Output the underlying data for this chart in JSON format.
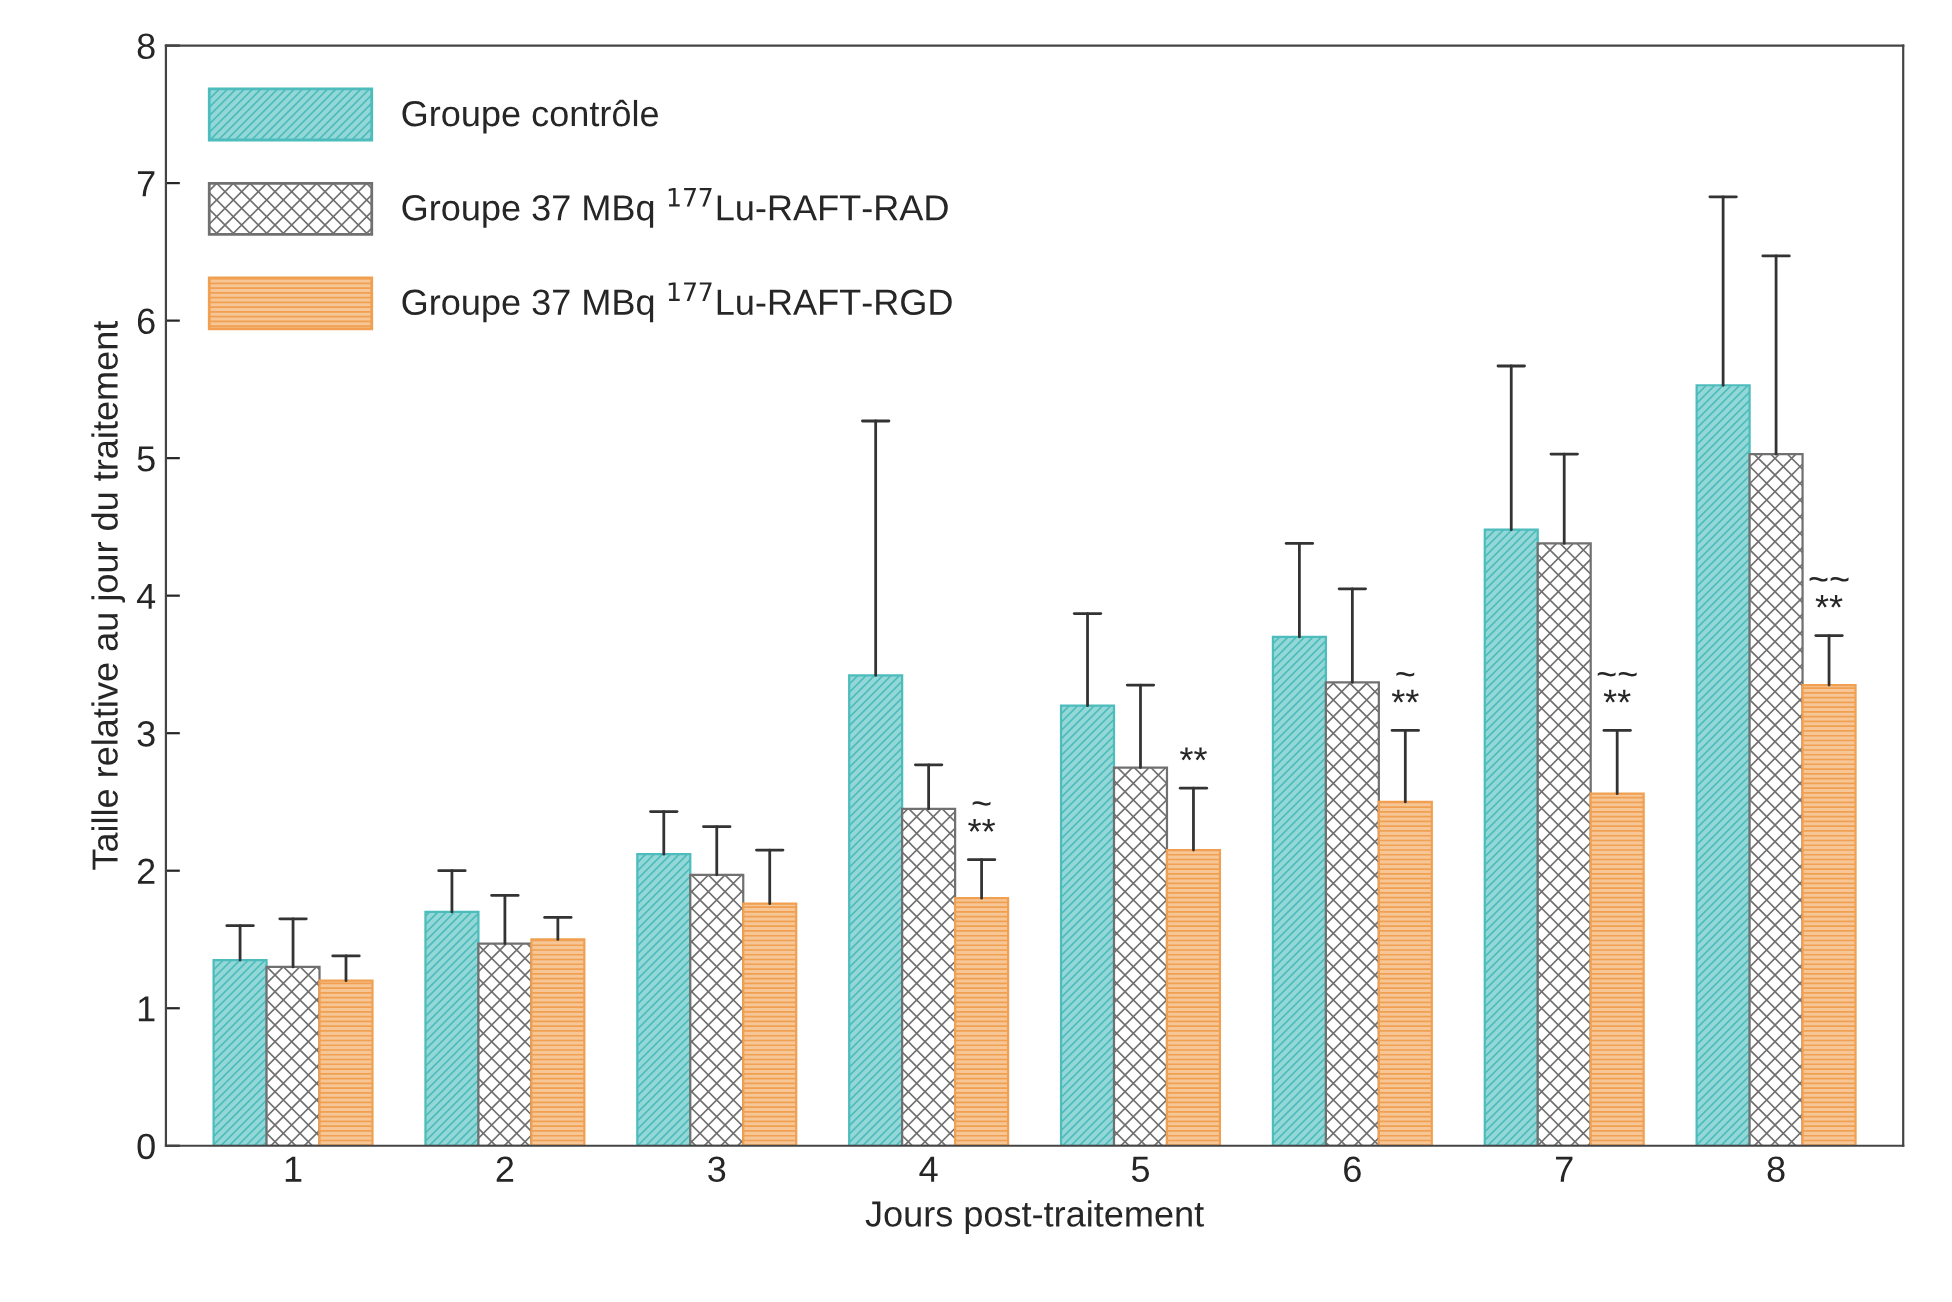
{
  "chart_data": {
    "type": "bar",
    "xlabel": "Jours post-traitement",
    "ylabel": "Taille relative au jour du traitement",
    "categories": [
      "1",
      "2",
      "3",
      "4",
      "5",
      "6",
      "7",
      "8"
    ],
    "series": [
      {
        "name": "Groupe contrôle",
        "color": "#4cbcbc",
        "values": [
          1.35,
          1.7,
          2.12,
          3.42,
          3.2,
          3.7,
          4.48,
          5.53
        ],
        "errors": [
          [
            1.35,
            1.6
          ],
          [
            1.7,
            2.0
          ],
          [
            2.12,
            2.43
          ],
          [
            3.42,
            5.27
          ],
          [
            3.2,
            3.87
          ],
          [
            3.7,
            4.38
          ],
          [
            4.48,
            5.67
          ],
          [
            5.53,
            6.9
          ]
        ]
      },
      {
        "name": "Groupe 37 MBq $^{177}$Lu-RAFT-RAD",
        "color": "#707070",
        "values": [
          1.3,
          1.47,
          1.97,
          2.45,
          2.75,
          3.37,
          4.38,
          5.03
        ],
        "errors": [
          [
            1.3,
            1.65
          ],
          [
            1.47,
            1.82
          ],
          [
            1.97,
            2.32
          ],
          [
            2.45,
            2.77
          ],
          [
            2.75,
            3.35
          ],
          [
            3.37,
            4.05
          ],
          [
            4.38,
            5.03
          ],
          [
            5.03,
            6.47
          ]
        ]
      },
      {
        "name": "Groupe 37 MBq $^{177}$Lu-RAFT-RGD",
        "color": "#f0a050",
        "values": [
          1.2,
          1.5,
          1.76,
          1.8,
          2.15,
          2.5,
          2.56,
          3.35
        ],
        "errors": [
          [
            1.2,
            1.38
          ],
          [
            1.5,
            1.66
          ],
          [
            1.76,
            2.15
          ],
          [
            1.8,
            2.08
          ],
          [
            2.15,
            2.6
          ],
          [
            2.5,
            3.02
          ],
          [
            2.56,
            3.02
          ],
          [
            3.35,
            3.71
          ]
        ]
      }
    ],
    "ylim": [
      0,
      8
    ],
    "yticks": [
      0,
      1,
      2,
      3,
      4,
      5,
      6,
      7,
      8
    ],
    "grid": false,
    "legend": "top left",
    "annotations": [
      "~\n**",
      "**",
      "~\n**",
      "~~\n**",
      "~~\n**"
    ]
  }
}
